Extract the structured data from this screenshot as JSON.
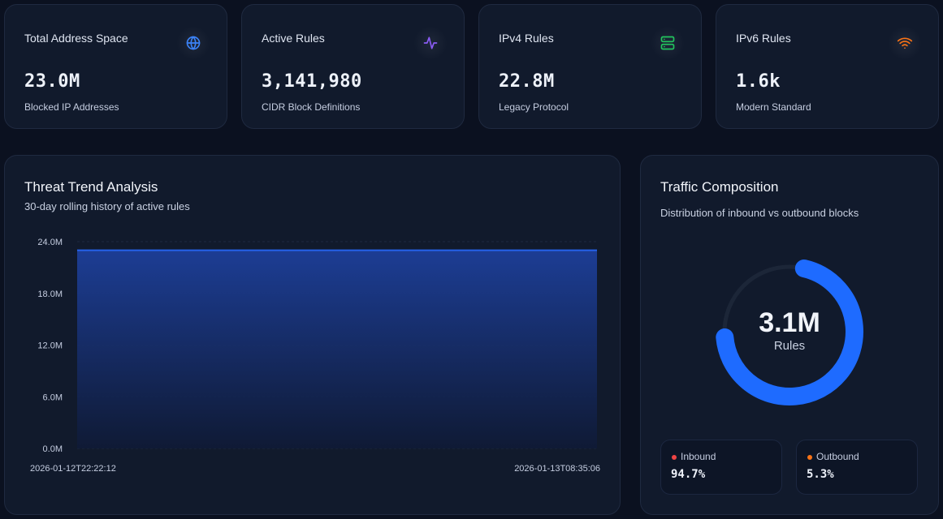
{
  "stats": [
    {
      "label": "Total Address Space",
      "value": "23.0M",
      "sub": "Blocked IP Addresses",
      "icon": "globe-icon",
      "color": "#3b82f6"
    },
    {
      "label": "Active Rules",
      "value": "3,141,980",
      "sub": "CIDR Block Definitions",
      "icon": "activity-icon",
      "color": "#8b5cf6"
    },
    {
      "label": "IPv4 Rules",
      "value": "22.8M",
      "sub": "Legacy Protocol",
      "icon": "server-icon",
      "color": "#22c55e"
    },
    {
      "label": "IPv6 Rules",
      "value": "1.6k",
      "sub": "Modern Standard",
      "icon": "wifi-icon",
      "color": "#f97316"
    }
  ],
  "trend": {
    "title": "Threat Trend Analysis",
    "subtitle": "30-day rolling history of active rules"
  },
  "chart_data": {
    "type": "area",
    "x": [
      "2026-01-12T22:22:12",
      "2026-01-13T08:35:06"
    ],
    "values": [
      23000000,
      23000000
    ],
    "ylim": [
      0,
      24000000
    ],
    "yticks": [
      0,
      6000000,
      12000000,
      18000000,
      24000000
    ],
    "ytick_labels": [
      "0.0M",
      "6.0M",
      "12.0M",
      "18.0M",
      "24.0M"
    ],
    "xtick_labels": [
      "2026-01-12T22:22:12",
      "2026-01-13T08:35:06"
    ],
    "color": "#2563eb",
    "grid": true
  },
  "composition": {
    "title": "Traffic Composition",
    "subtitle": "Distribution of inbound vs outbound blocks",
    "center_value": "3.1M",
    "center_label": "Rules",
    "inbound": {
      "label": "Inbound",
      "value": "94.7%",
      "fraction": 0.947,
      "color": "#ef4444"
    },
    "outbound": {
      "label": "Outbound",
      "value": "5.3%",
      "fraction": 0.053,
      "color": "#f97316"
    },
    "arc_color": "#1e6bff",
    "track_color": "#1c2638"
  }
}
